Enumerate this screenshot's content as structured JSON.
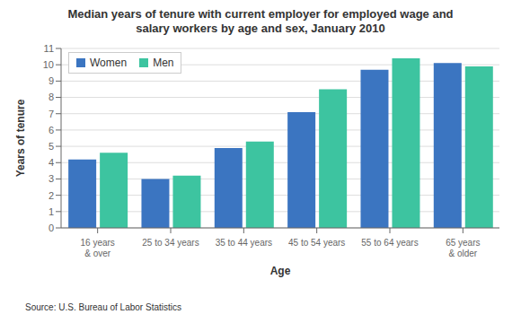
{
  "chart_data": {
    "type": "bar",
    "title": "Median years of tenure with current employer for employed wage and\nsalary workers by age and sex, January 2010",
    "categories": [
      "16 years\n& over",
      "25 to 34 years",
      "35 to 44 years",
      "45 to 54 years",
      "55 to 64 years",
      "65 years\n& older"
    ],
    "series": [
      {
        "name": "Women",
        "color": "#3B75C1",
        "values": [
          4.2,
          3.0,
          4.9,
          7.1,
          9.7,
          10.1
        ]
      },
      {
        "name": "Men",
        "color": "#3DC4A0",
        "values": [
          4.6,
          3.2,
          5.3,
          8.5,
          10.4,
          9.9
        ]
      }
    ],
    "xlabel": "Age",
    "ylabel": "Years of tenure",
    "ylim": [
      0,
      11
    ],
    "yticks": [
      0,
      1,
      2,
      3,
      4,
      5,
      6,
      7,
      8,
      9,
      10,
      11
    ],
    "grid": true,
    "legend": "upper left",
    "source": "Source: U.S. Bureau of Labor Statistics"
  }
}
